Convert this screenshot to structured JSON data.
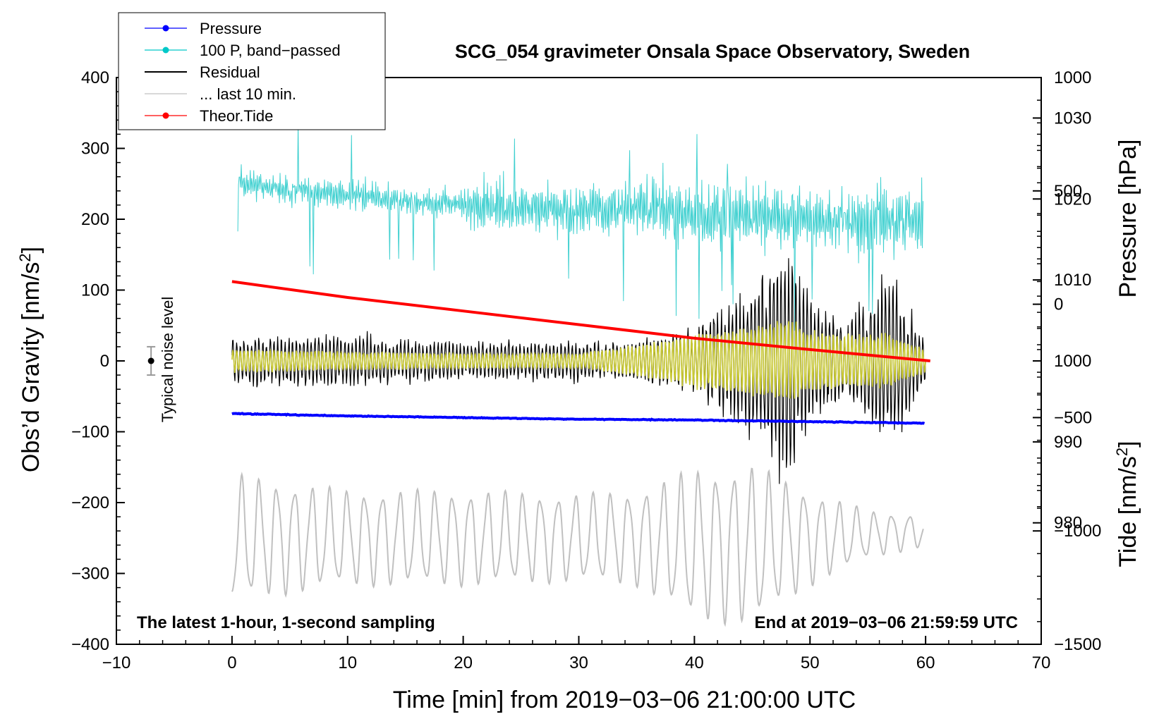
{
  "chart_data": {
    "type": "line",
    "title": "SCG_054 gravimeter Onsala Space Observatory, Sweden",
    "xlabel": "Time [min] from 2019−03−06 21:00:00 UTC",
    "ylabel_left": "Obs’d Gravity [nm/s2]",
    "ylabel_pressure": "Pressure [hPa]",
    "ylabel_tide": "Tide [nm/s2]",
    "xlim": [
      -10,
      70
    ],
    "ylim_left": [
      -400,
      400
    ],
    "ylim_pressure": [
      965,
      1035
    ],
    "ylim_tide": [
      -1500,
      1000
    ],
    "x_ticks": [
      "−10",
      "0",
      "10",
      "20",
      "30",
      "40",
      "50",
      "60",
      "70"
    ],
    "y_ticks_left": [
      "−400",
      "−300",
      "−200",
      "−100",
      "0",
      "100",
      "200",
      "300",
      "400"
    ],
    "y_ticks_pressure": [
      "980",
      "990",
      "1000",
      "1010",
      "1020",
      "1030"
    ],
    "y_ticks_tide": [
      "−1500",
      "−1000",
      "−500",
      "0",
      "500",
      "1000"
    ],
    "note_left": "The latest 1-hour, 1-second sampling",
    "note_right": "End at 2019−03−06 21:59:59 UTC",
    "noise_label": "Typical noise level",
    "noise_bar": {
      "x": -7,
      "y": 0,
      "err": 20
    },
    "legend": [
      {
        "label": "Pressure",
        "color": "#0000ff"
      },
      {
        "label": "100 P, band−passed",
        "color": "#00c8c8"
      },
      {
        "label": "Residual",
        "color": "#000000"
      },
      {
        "label": "... last 10 min.",
        "color": "#c0c0c0"
      },
      {
        "label": "Theor.Tide",
        "color": "#ff0000"
      }
    ],
    "series": [
      {
        "name": "Pressure",
        "axis": "pressure",
        "color": "#0000ff",
        "x": [
          0,
          10,
          20,
          30,
          40,
          50,
          60
        ],
        "values": [
          993.5,
          993.2,
          993.0,
          992.8,
          992.7,
          992.5,
          992.3
        ]
      },
      {
        "name": "100 P, band−passed",
        "axis": "left",
        "color": "#40d0d0",
        "x": [
          0,
          5,
          10,
          15,
          20,
          25,
          30,
          35,
          40,
          45,
          50,
          55,
          60
        ],
        "values": [
          255,
          240,
          235,
          225,
          220,
          215,
          210,
          215,
          210,
          205,
          200,
          195,
          200
        ]
      },
      {
        "name": "Residual",
        "axis": "left",
        "color": "#000000",
        "x": [
          0,
          10,
          20,
          30,
          35,
          40,
          45,
          48,
          50,
          53,
          57,
          60
        ],
        "values": [
          0,
          0,
          0,
          0,
          0,
          0,
          0,
          0,
          0,
          0,
          0,
          0
        ],
        "amplitude": [
          40,
          40,
          30,
          30,
          30,
          55,
          120,
          190,
          110,
          60,
          140,
          30
        ]
      },
      {
        "name": "... last 10 min.",
        "axis": "left",
        "color": "#c0c0c0",
        "x": [
          0,
          10,
          20,
          30,
          35,
          40,
          45,
          50,
          55,
          60
        ],
        "values": [
          -250,
          -250,
          -250,
          -250,
          -250,
          -260,
          -260,
          -250,
          -245,
          -240
        ],
        "amplitude": [
          80,
          60,
          60,
          55,
          60,
          95,
          100,
          60,
          30,
          20
        ]
      },
      {
        "name": "Theor.Tide",
        "axis": "tide",
        "color": "#ff0000",
        "x": [
          0,
          10,
          20,
          30,
          40,
          50,
          60.4
        ],
        "values": [
          100,
          30,
          -30,
          -90,
          -150,
          -200,
          -250
        ]
      }
    ],
    "overlay": {
      "name": "residual-filtered",
      "color": "#c8c832",
      "x": [
        0,
        10,
        20,
        30,
        35,
        40,
        45,
        48,
        50,
        53,
        57,
        60
      ],
      "amplitude": [
        15,
        12,
        10,
        10,
        20,
        35,
        45,
        55,
        40,
        35,
        35,
        15
      ]
    }
  }
}
